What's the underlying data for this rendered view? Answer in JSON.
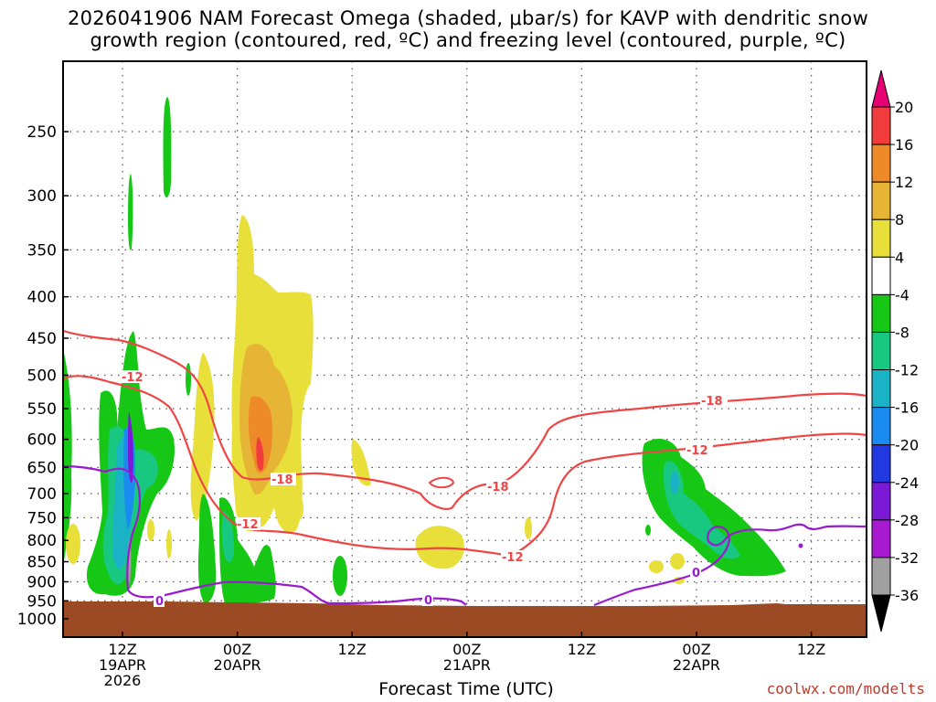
{
  "chart_data": {
    "type": "heatmap",
    "title_line1": "2026041906 NAM Forecast Omega (shaded, μbar/s) for KAVP with dendritic snow",
    "title_line2": "growth region (contoured, red, ºC) and freezing level (contoured, purple, ºC)",
    "xlabel": "Forecast Time (UTC)",
    "credit": "coolwx.com/modelts",
    "y_axis": {
      "units": "hPa",
      "scale": "log-pressure",
      "ticks": [
        "250",
        "300",
        "350",
        "400",
        "450",
        "500",
        "550",
        "600",
        "650",
        "700",
        "750",
        "800",
        "850",
        "900",
        "950",
        "1000"
      ]
    },
    "x_axis": {
      "ticks": [
        {
          "line1": "12Z",
          "line2": "19APR",
          "line3": "2026"
        },
        {
          "line1": "00Z",
          "line2": "20APR",
          "line3": ""
        },
        {
          "line1": "12Z",
          "line2": "",
          "line3": ""
        },
        {
          "line1": "00Z",
          "line2": "21APR",
          "line3": ""
        },
        {
          "line1": "12Z",
          "line2": "",
          "line3": ""
        },
        {
          "line1": "00Z",
          "line2": "22APR",
          "line3": ""
        },
        {
          "line1": "12Z",
          "line2": "",
          "line3": ""
        }
      ]
    },
    "colorbar": {
      "levels": [
        {
          "label": "20",
          "color": "#e60073"
        },
        {
          "label": "16",
          "color": "#f03c3c"
        },
        {
          "label": "12",
          "color": "#ef8a29"
        },
        {
          "label": "8",
          "color": "#e6b535"
        },
        {
          "label": "4",
          "color": "#e9df3a"
        },
        {
          "label": "-4",
          "color": "#ffffff"
        },
        {
          "label": "-8",
          "color": "#16c815"
        },
        {
          "label": "-12",
          "color": "#19c880"
        },
        {
          "label": "-16",
          "color": "#1ab3c6"
        },
        {
          "label": "-20",
          "color": "#1a8cf0"
        },
        {
          "label": "-24",
          "color": "#2238e0"
        },
        {
          "label": "-28",
          "color": "#7a1ad6"
        },
        {
          "label": "-32",
          "color": "#a81ad0"
        },
        {
          "label": "-36",
          "color": "#a0a0a0"
        },
        {
          "label": "",
          "color": "#000000"
        }
      ]
    },
    "contours": {
      "dendritic_neg12_label": "-12",
      "dendritic_neg18_label": "-18",
      "freezing_label": "0"
    },
    "colors": {
      "dendritic": "#f04545",
      "freezing": "#9a1ad0",
      "ground": "#9b4a23"
    }
  }
}
